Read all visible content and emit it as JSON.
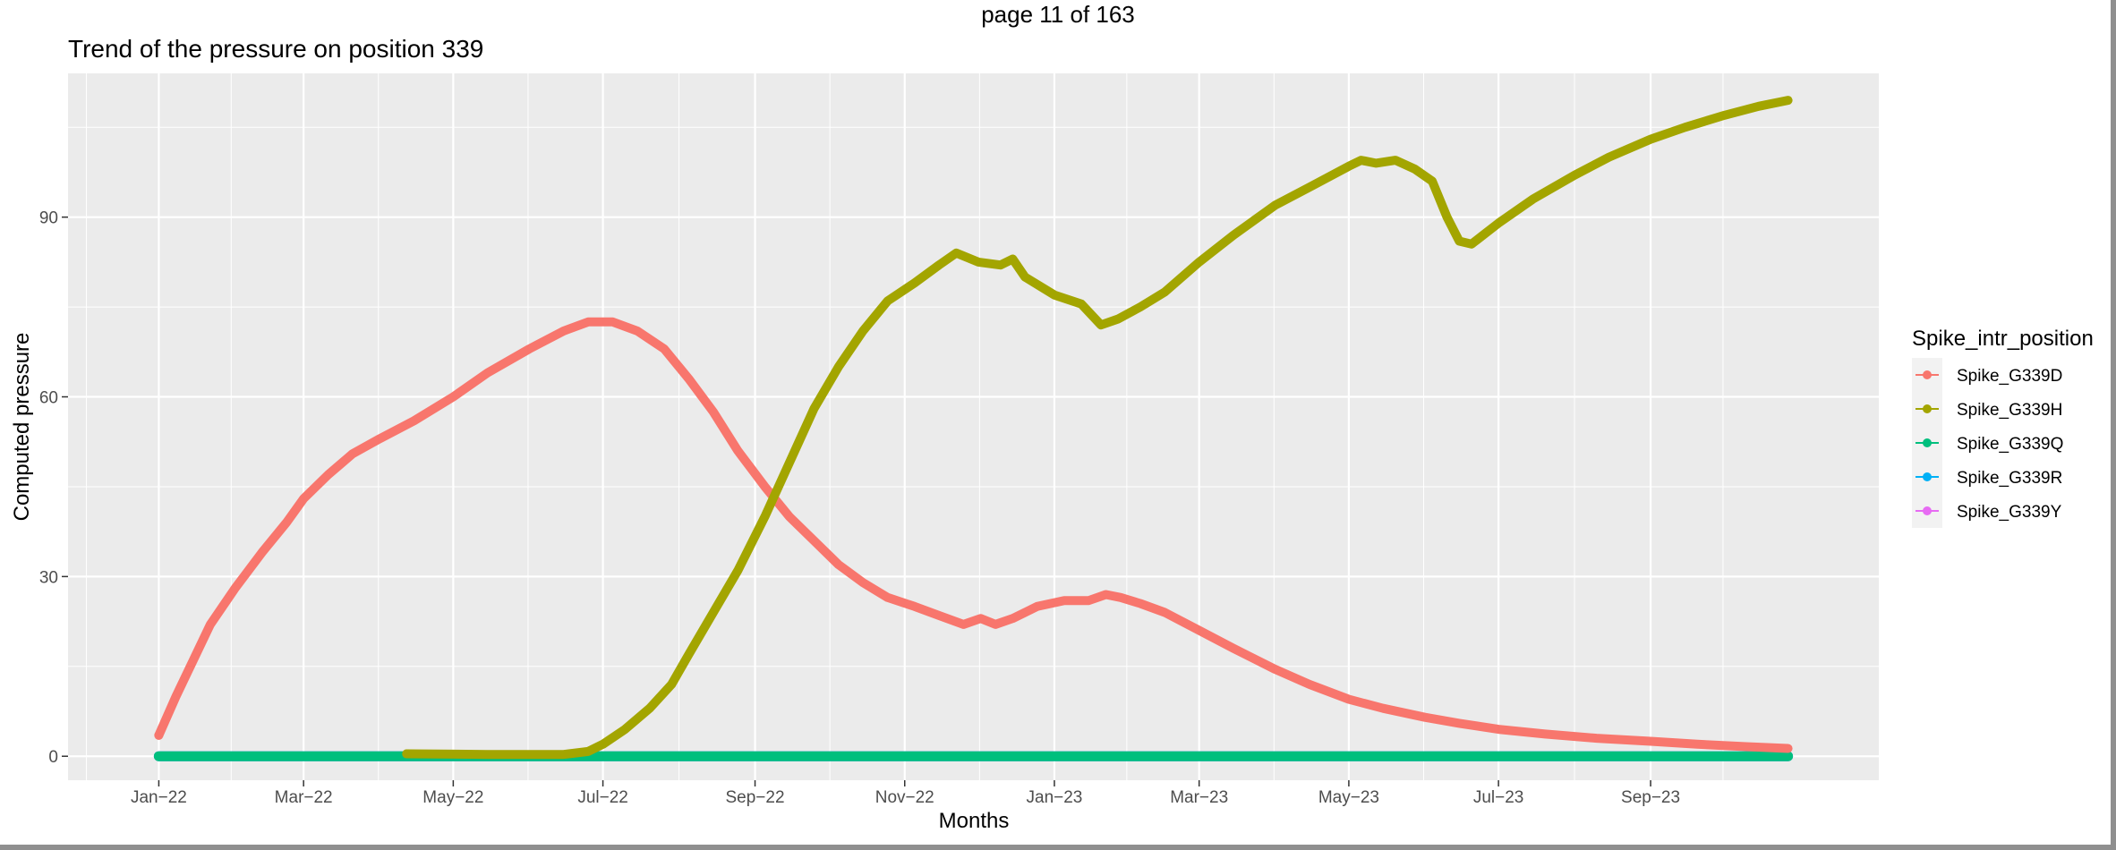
{
  "page_header": "page 11 of 163",
  "chart_data": {
    "type": "line",
    "title": "Trend of the pressure on position 339",
    "xlabel": "Months",
    "ylabel": "Computed pressure",
    "x_type": "date",
    "xlim": [
      "2021-11-25",
      "2023-12-03"
    ],
    "ylim": [
      -4,
      114
    ],
    "y_ticks": [
      0,
      30,
      60,
      90
    ],
    "x_ticks": [
      {
        "date": "2022-01-01",
        "label": "Jan−22"
      },
      {
        "date": "2022-03-01",
        "label": "Mar−22"
      },
      {
        "date": "2022-05-01",
        "label": "May−22"
      },
      {
        "date": "2022-07-01",
        "label": "Jul−22"
      },
      {
        "date": "2022-09-01",
        "label": "Sep−22"
      },
      {
        "date": "2022-11-01",
        "label": "Nov−22"
      },
      {
        "date": "2023-01-01",
        "label": "Jan−23"
      },
      {
        "date": "2023-03-01",
        "label": "Mar−23"
      },
      {
        "date": "2023-05-01",
        "label": "May−23"
      },
      {
        "date": "2023-07-01",
        "label": "Jul−23"
      },
      {
        "date": "2023-09-01",
        "label": "Sep−23"
      }
    ],
    "grid": true,
    "legend": {
      "title": "Spike_intr_position",
      "position": "right"
    },
    "series": [
      {
        "name": "Spike_G339D",
        "color": "#F8766D",
        "points": [
          [
            "2022-01-01",
            3.5
          ],
          [
            "2022-01-08",
            10
          ],
          [
            "2022-01-15",
            16
          ],
          [
            "2022-01-22",
            22
          ],
          [
            "2022-02-01",
            28
          ],
          [
            "2022-02-12",
            34
          ],
          [
            "2022-02-22",
            39
          ],
          [
            "2022-03-01",
            43
          ],
          [
            "2022-03-11",
            47
          ],
          [
            "2022-03-21",
            50.5
          ],
          [
            "2022-04-01",
            53
          ],
          [
            "2022-04-15",
            56
          ],
          [
            "2022-05-01",
            60
          ],
          [
            "2022-05-15",
            64
          ],
          [
            "2022-06-01",
            68
          ],
          [
            "2022-06-15",
            71
          ],
          [
            "2022-06-25",
            72.5
          ],
          [
            "2022-07-05",
            72.5
          ],
          [
            "2022-07-15",
            71
          ],
          [
            "2022-07-26",
            68
          ],
          [
            "2022-08-05",
            63
          ],
          [
            "2022-08-15",
            57.5
          ],
          [
            "2022-08-25",
            51
          ],
          [
            "2022-09-05",
            45
          ],
          [
            "2022-09-15",
            40
          ],
          [
            "2022-09-25",
            36
          ],
          [
            "2022-10-05",
            32
          ],
          [
            "2022-10-15",
            29
          ],
          [
            "2022-10-25",
            26.5
          ],
          [
            "2022-11-05",
            25
          ],
          [
            "2022-11-15",
            23.5
          ],
          [
            "2022-11-25",
            22
          ],
          [
            "2022-12-02",
            23
          ],
          [
            "2022-12-08",
            22
          ],
          [
            "2022-12-15",
            23
          ],
          [
            "2022-12-25",
            25
          ],
          [
            "2023-01-05",
            26
          ],
          [
            "2023-01-15",
            26
          ],
          [
            "2023-01-22",
            27
          ],
          [
            "2023-01-28",
            26.5
          ],
          [
            "2023-02-05",
            25.5
          ],
          [
            "2023-02-15",
            24
          ],
          [
            "2023-03-01",
            21
          ],
          [
            "2023-03-15",
            18
          ],
          [
            "2023-04-01",
            14.5
          ],
          [
            "2023-04-15",
            12
          ],
          [
            "2023-05-01",
            9.5
          ],
          [
            "2023-05-15",
            8
          ],
          [
            "2023-06-01",
            6.5
          ],
          [
            "2023-06-15",
            5.5
          ],
          [
            "2023-07-01",
            4.5
          ],
          [
            "2023-07-20",
            3.7
          ],
          [
            "2023-08-10",
            3
          ],
          [
            "2023-09-01",
            2.5
          ],
          [
            "2023-09-20",
            2
          ],
          [
            "2023-10-10",
            1.6
          ],
          [
            "2023-10-27",
            1.3
          ]
        ]
      },
      {
        "name": "Spike_G339H",
        "color": "#A3A500",
        "points": [
          [
            "2022-04-12",
            0.4
          ],
          [
            "2022-05-15",
            0.3
          ],
          [
            "2022-06-15",
            0.3
          ],
          [
            "2022-06-25",
            0.8
          ],
          [
            "2022-07-01",
            2
          ],
          [
            "2022-07-10",
            4.5
          ],
          [
            "2022-07-20",
            8
          ],
          [
            "2022-07-29",
            12
          ],
          [
            "2022-08-05",
            17
          ],
          [
            "2022-08-15",
            24
          ],
          [
            "2022-08-25",
            31
          ],
          [
            "2022-09-05",
            40
          ],
          [
            "2022-09-15",
            49
          ],
          [
            "2022-09-25",
            58
          ],
          [
            "2022-10-05",
            65
          ],
          [
            "2022-10-15",
            71
          ],
          [
            "2022-10-25",
            76
          ],
          [
            "2022-11-05",
            79
          ],
          [
            "2022-11-15",
            82
          ],
          [
            "2022-11-22",
            84
          ],
          [
            "2022-12-01",
            82.5
          ],
          [
            "2022-12-10",
            82
          ],
          [
            "2022-12-15",
            83
          ],
          [
            "2022-12-20",
            80
          ],
          [
            "2023-01-01",
            77
          ],
          [
            "2023-01-12",
            75.5
          ],
          [
            "2023-01-20",
            72
          ],
          [
            "2023-01-27",
            73
          ],
          [
            "2023-02-05",
            75
          ],
          [
            "2023-02-15",
            77.5
          ],
          [
            "2023-03-01",
            82.5
          ],
          [
            "2023-03-15",
            87
          ],
          [
            "2023-04-01",
            92
          ],
          [
            "2023-04-15",
            95
          ],
          [
            "2023-05-01",
            98.5
          ],
          [
            "2023-05-06",
            99.5
          ],
          [
            "2023-05-12",
            99
          ],
          [
            "2023-05-20",
            99.5
          ],
          [
            "2023-05-28",
            98
          ],
          [
            "2023-06-04",
            96
          ],
          [
            "2023-06-10",
            90
          ],
          [
            "2023-06-15",
            86
          ],
          [
            "2023-06-20",
            85.5
          ],
          [
            "2023-07-01",
            89
          ],
          [
            "2023-07-15",
            93
          ],
          [
            "2023-08-01",
            97
          ],
          [
            "2023-08-15",
            100
          ],
          [
            "2023-09-01",
            103
          ],
          [
            "2023-09-15",
            105
          ],
          [
            "2023-10-01",
            107
          ],
          [
            "2023-10-15",
            108.5
          ],
          [
            "2023-10-27",
            109.5
          ]
        ]
      },
      {
        "name": "Spike_G339Q",
        "color": "#00BF7D",
        "points": [
          [
            "2022-01-01",
            0
          ],
          [
            "2023-10-27",
            0
          ]
        ]
      },
      {
        "name": "Spike_G339R",
        "color": "#00B0F6",
        "points": [
          [
            "2022-01-01",
            0
          ],
          [
            "2023-10-27",
            0
          ]
        ]
      },
      {
        "name": "Spike_G339Y",
        "color": "#E76BF3",
        "points": [
          [
            "2022-01-01",
            0
          ],
          [
            "2023-10-27",
            0
          ]
        ]
      }
    ]
  }
}
